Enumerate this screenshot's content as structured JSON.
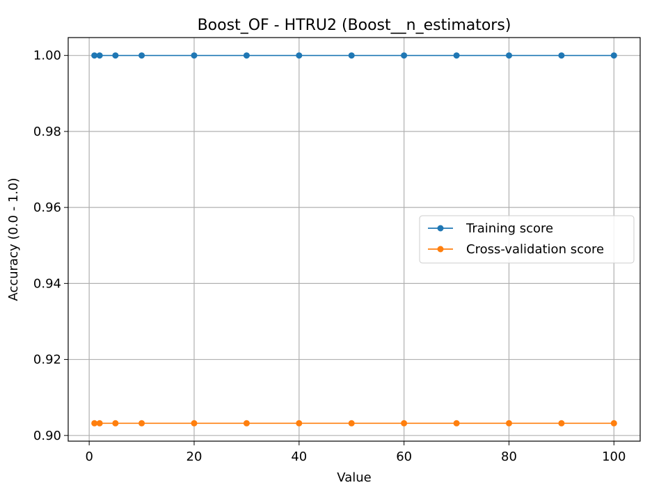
{
  "chart_data": {
    "type": "line",
    "title": "Boost_OF - HTRU2 (Boost__n_estimators)",
    "xlabel": "Value",
    "ylabel": "Accuracy (0.0 - 1.0)",
    "x": [
      1,
      2,
      5,
      10,
      20,
      30,
      40,
      50,
      60,
      70,
      80,
      90,
      100
    ],
    "xlim": [
      -4.0,
      105.0
    ],
    "ylim": [
      0.8985,
      1.0047
    ],
    "xticks": [
      "0",
      "20",
      "40",
      "60",
      "80",
      "100"
    ],
    "yticks": [
      "0.90",
      "0.92",
      "0.94",
      "0.96",
      "0.98",
      "1.00"
    ],
    "grid": true,
    "legend_position": "center-right",
    "series": [
      {
        "name": "Training score",
        "color": "#1f77b4",
        "values": [
          1.0,
          1.0,
          1.0,
          1.0,
          1.0,
          1.0,
          1.0,
          1.0,
          1.0,
          1.0,
          1.0,
          1.0,
          1.0
        ]
      },
      {
        "name": "Cross-validation score",
        "color": "#ff7f0e",
        "values": [
          0.9032,
          0.9032,
          0.9032,
          0.9032,
          0.9032,
          0.9032,
          0.9032,
          0.9032,
          0.9032,
          0.9032,
          0.9032,
          0.9032,
          0.9032
        ]
      }
    ]
  }
}
